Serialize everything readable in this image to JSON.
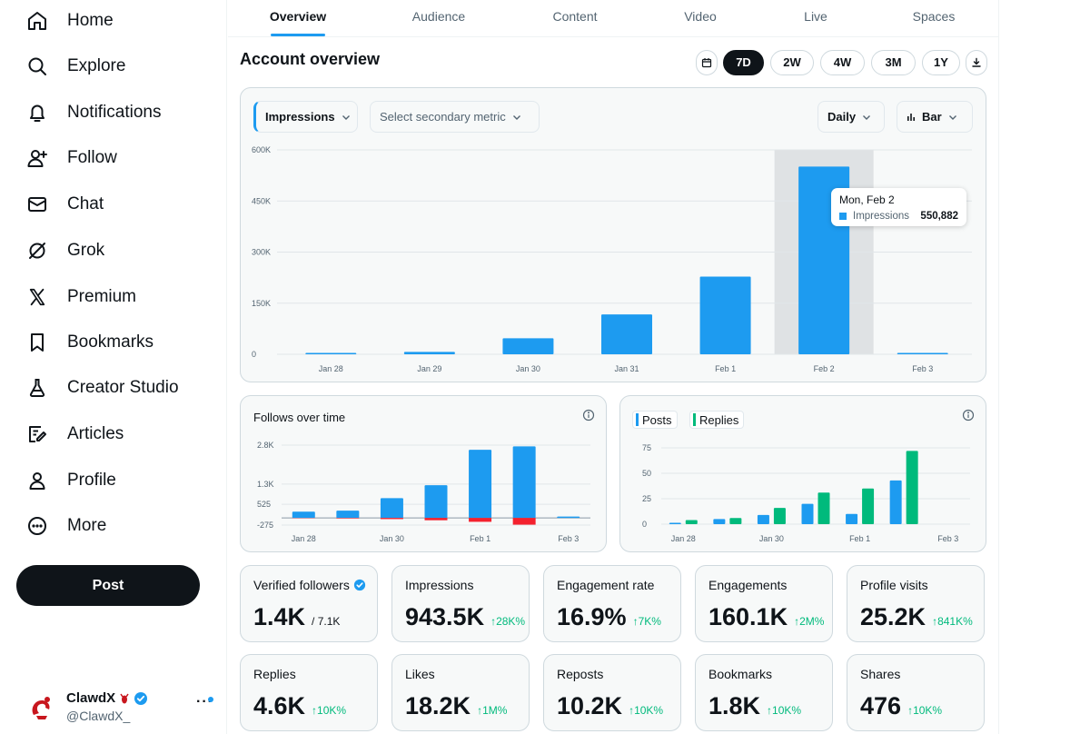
{
  "sidebar": {
    "items": [
      {
        "label": "Home",
        "icon": "home-icon"
      },
      {
        "label": "Explore",
        "icon": "search-icon"
      },
      {
        "label": "Notifications",
        "icon": "bell-icon"
      },
      {
        "label": "Follow",
        "icon": "person-plus-icon"
      },
      {
        "label": "Chat",
        "icon": "mail-icon"
      },
      {
        "label": "Grok",
        "icon": "grok-icon"
      },
      {
        "label": "Premium",
        "icon": "x-logo-icon"
      },
      {
        "label": "Bookmarks",
        "icon": "bookmark-icon"
      },
      {
        "label": "Creator Studio",
        "icon": "flask-icon"
      },
      {
        "label": "Articles",
        "icon": "article-icon"
      },
      {
        "label": "Profile",
        "icon": "person-icon"
      },
      {
        "label": "More",
        "icon": "more-circle-icon"
      }
    ],
    "post_label": "Post",
    "account": {
      "name": "ClawdX",
      "handle": "@ClawdX_",
      "more": "···"
    }
  },
  "tabs": [
    "Overview",
    "Audience",
    "Content",
    "Video",
    "Live",
    "Spaces"
  ],
  "active_tab": "Overview",
  "page_title": "Account overview",
  "ranges": [
    "7D",
    "2W",
    "4W",
    "3M",
    "1Y"
  ],
  "selected_range": "7D",
  "main_chart_controls": {
    "primary": "Impressions",
    "secondary": "Select secondary metric",
    "interval": "Daily",
    "chart_type": "Bar"
  },
  "tooltip": {
    "date": "Mon, Feb 2",
    "label": "Impressions",
    "value": "550,882"
  },
  "chart_data": [
    {
      "type": "bar",
      "title": "Impressions",
      "categories": [
        "Jan 28",
        "Jan 29",
        "Jan 30",
        "Jan 31",
        "Feb 1",
        "Feb 2",
        "Feb 3"
      ],
      "values": [
        3000,
        7000,
        47000,
        117000,
        228000,
        550882,
        3000
      ],
      "yticks": [
        "0",
        "150K",
        "300K",
        "450K",
        "600K"
      ],
      "ylim": [
        0,
        600000
      ],
      "highlight": "Feb 2"
    },
    {
      "type": "bar",
      "title": "Follows over time",
      "categories": [
        "Jan 28",
        "Jan 29",
        "Jan 30",
        "Jan 31",
        "Feb 1",
        "Feb 2",
        "Feb 3"
      ],
      "xticks": [
        "Jan 28",
        "Jan 30",
        "Feb 1",
        "Feb 3"
      ],
      "series": [
        {
          "name": "Follows",
          "values": [
            240,
            280,
            760,
            1260,
            2620,
            2750,
            0
          ]
        },
        {
          "name": "Unfollows",
          "values": [
            -10,
            -20,
            -45,
            -90,
            -150,
            -260,
            0
          ]
        }
      ],
      "yticks": [
        "2.8K",
        "1.3K",
        "525",
        "-275"
      ],
      "ylim": [
        -275,
        2800
      ]
    },
    {
      "type": "bar",
      "title": "",
      "categories": [
        "Jan 28",
        "Jan 29",
        "Jan 30",
        "Jan 31",
        "Feb 1",
        "Feb 2",
        "Feb 3"
      ],
      "xticks": [
        "Jan 28",
        "Jan 30",
        "Feb 1",
        "Feb 3"
      ],
      "series": [
        {
          "name": "Posts",
          "values": [
            1,
            5,
            9,
            20,
            10,
            43,
            0
          ]
        },
        {
          "name": "Replies",
          "values": [
            4,
            6,
            16,
            31,
            35,
            72,
            0
          ]
        }
      ],
      "yticks": [
        "75",
        "50",
        "25",
        "0"
      ],
      "ylim": [
        0,
        75
      ]
    }
  ],
  "follows_chart": {
    "title": "Follows over time"
  },
  "posts_chart": {
    "legend": [
      "Posts",
      "Replies"
    ]
  },
  "metrics": [
    {
      "label": "Verified followers",
      "value": "1.4K",
      "total": "/ 7.1K",
      "verified": true
    },
    {
      "label": "Impressions",
      "value": "943.5K",
      "delta": "↑28K%"
    },
    {
      "label": "Engagement rate",
      "value": "16.9%",
      "delta": "↑7K%"
    },
    {
      "label": "Engagements",
      "value": "160.1K",
      "delta": "↑2M%"
    },
    {
      "label": "Profile visits",
      "value": "25.2K",
      "delta": "↑841K%"
    },
    {
      "label": "Replies",
      "value": "4.6K",
      "delta": "↑10K%"
    },
    {
      "label": "Likes",
      "value": "18.2K",
      "delta": "↑1M%"
    },
    {
      "label": "Reposts",
      "value": "10.2K",
      "delta": "↑10K%"
    },
    {
      "label": "Bookmarks",
      "value": "1.8K",
      "delta": "↑10K%"
    },
    {
      "label": "Shares",
      "value": "476",
      "delta": "↑10K%"
    }
  ],
  "colors": {
    "accent": "#1d9bf0",
    "positive": "#00ba7c",
    "negative": "#f4212e",
    "text": "#0f1419",
    "muted": "#536471"
  }
}
